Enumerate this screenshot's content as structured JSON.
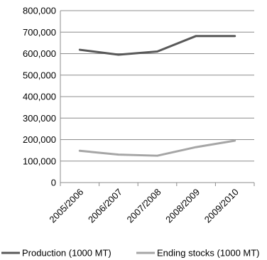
{
  "chart_data": {
    "type": "line",
    "categories": [
      "2005/2006",
      "2006/2007",
      "2007/2008",
      "2008/2009",
      "2009/2010"
    ],
    "series": [
      {
        "name": "Production (1000 MT)",
        "color": "#595959",
        "values": [
          618000,
          595000,
          610000,
          682000,
          682000
        ]
      },
      {
        "name": "Ending stocks (1000 MT)",
        "color": "#a6a6a6",
        "values": [
          148000,
          130000,
          125000,
          165000,
          195000
        ]
      }
    ],
    "ylim": [
      0,
      800000
    ],
    "yticks": [
      "0",
      "100,000",
      "200,000",
      "300,000",
      "400,000",
      "500,000",
      "600,000",
      "700,000",
      "800,000"
    ],
    "grid": true,
    "legend_position": "bottom",
    "title": "",
    "xlabel": "",
    "ylabel": ""
  }
}
